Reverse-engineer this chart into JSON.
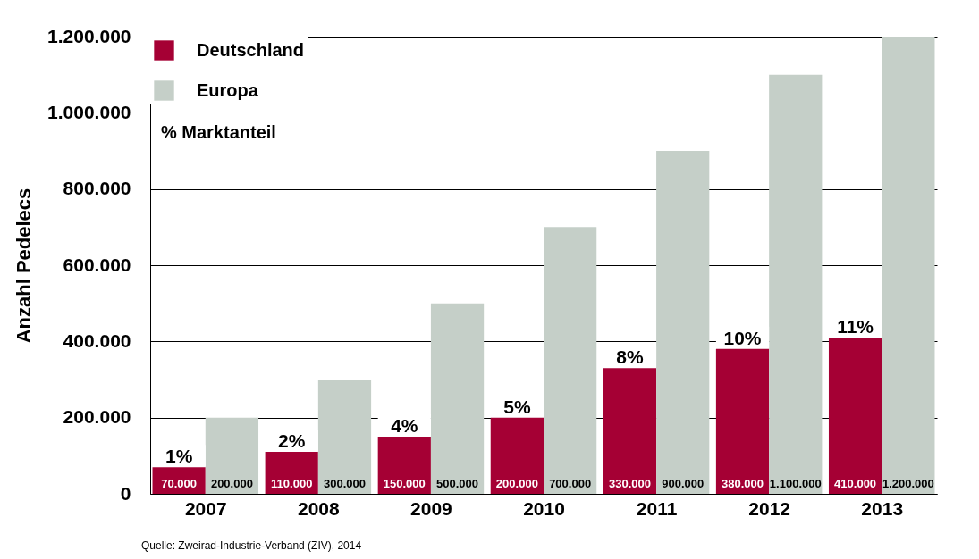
{
  "chart_data": {
    "type": "bar",
    "ylabel": "Anzahl Pedelecs",
    "categories": [
      "2007",
      "2008",
      "2009",
      "2010",
      "2011",
      "2012",
      "2013"
    ],
    "series": [
      {
        "name": "Deutschland",
        "color": "#a50034",
        "values": [
          70000,
          110000,
          150000,
          200000,
          330000,
          380000,
          410000
        ],
        "value_labels": [
          "70.000",
          "110.000",
          "150.000",
          "200.000",
          "330.000",
          "380.000",
          "410.000"
        ]
      },
      {
        "name": "Europa",
        "color": "#c5cfc8",
        "values": [
          200000,
          300000,
          500000,
          700000,
          900000,
          1100000,
          1200000
        ],
        "value_labels": [
          "200.000",
          "300.000",
          "500.000",
          "700.000",
          "900.000",
          "1.100.000",
          "1.200.000"
        ]
      }
    ],
    "ylim": [
      0,
      1200000
    ],
    "yticks": [
      {
        "value": 0,
        "label": "0"
      },
      {
        "value": 200000,
        "label": "200.000"
      },
      {
        "value": 400000,
        "label": "400.000"
      },
      {
        "value": 600000,
        "label": "600.000"
      },
      {
        "value": 800000,
        "label": "800.000"
      },
      {
        "value": 1000000,
        "label": "1.000.000"
      },
      {
        "value": 1200000,
        "label": "1.200.000"
      }
    ],
    "grid": "y",
    "legend": "top left",
    "annotations": [
      {
        "text": "1%",
        "x": "2007",
        "y": 70000
      },
      {
        "text": "2%",
        "x": "2008",
        "y": 110000
      },
      {
        "text": "4%",
        "x": "2009",
        "y": 150000
      },
      {
        "text": "5%",
        "x": "2010",
        "y": 200000
      },
      {
        "text": "8%",
        "x": "2011",
        "y": 330000
      },
      {
        "text": "10%",
        "x": "2012",
        "y": 380000
      },
      {
        "text": "11%",
        "x": "2013",
        "y": 410000
      },
      "%    Marktanteil",
      "Quelle: Zweirad-Industrie-Verband (ZIV), 2014"
    ]
  }
}
